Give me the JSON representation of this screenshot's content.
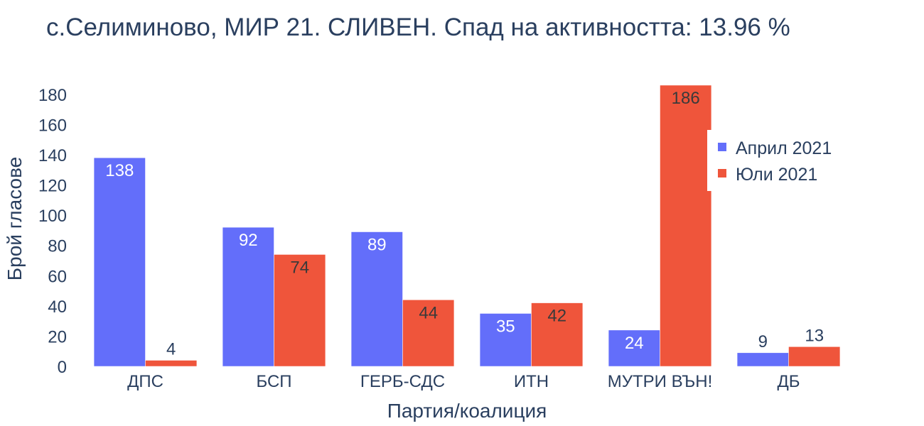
{
  "chart_data": {
    "type": "bar",
    "title": "с.Селиминово, МИР 21. СЛИВЕН. Спад на активността: 13.96 %",
    "xlabel": "Партия/коалиция",
    "ylabel": "Брой гласове",
    "categories": [
      "ДПС",
      "БСП",
      "ГЕРБ-СДС",
      "ИТН",
      "МУТРИ ВЪН!",
      "ДБ"
    ],
    "series": [
      {
        "name": "Април 2021",
        "color": "#636efa",
        "values": [
          138,
          92,
          89,
          35,
          24,
          9
        ]
      },
      {
        "name": "Юли 2021",
        "color": "#ef553b",
        "values": [
          4,
          74,
          44,
          42,
          186,
          13
        ]
      }
    ],
    "ylim": [
      0,
      186
    ],
    "yticks": [
      0,
      20,
      40,
      60,
      80,
      100,
      120,
      140,
      160,
      180
    ],
    "grid": false,
    "legend_position": "right"
  }
}
